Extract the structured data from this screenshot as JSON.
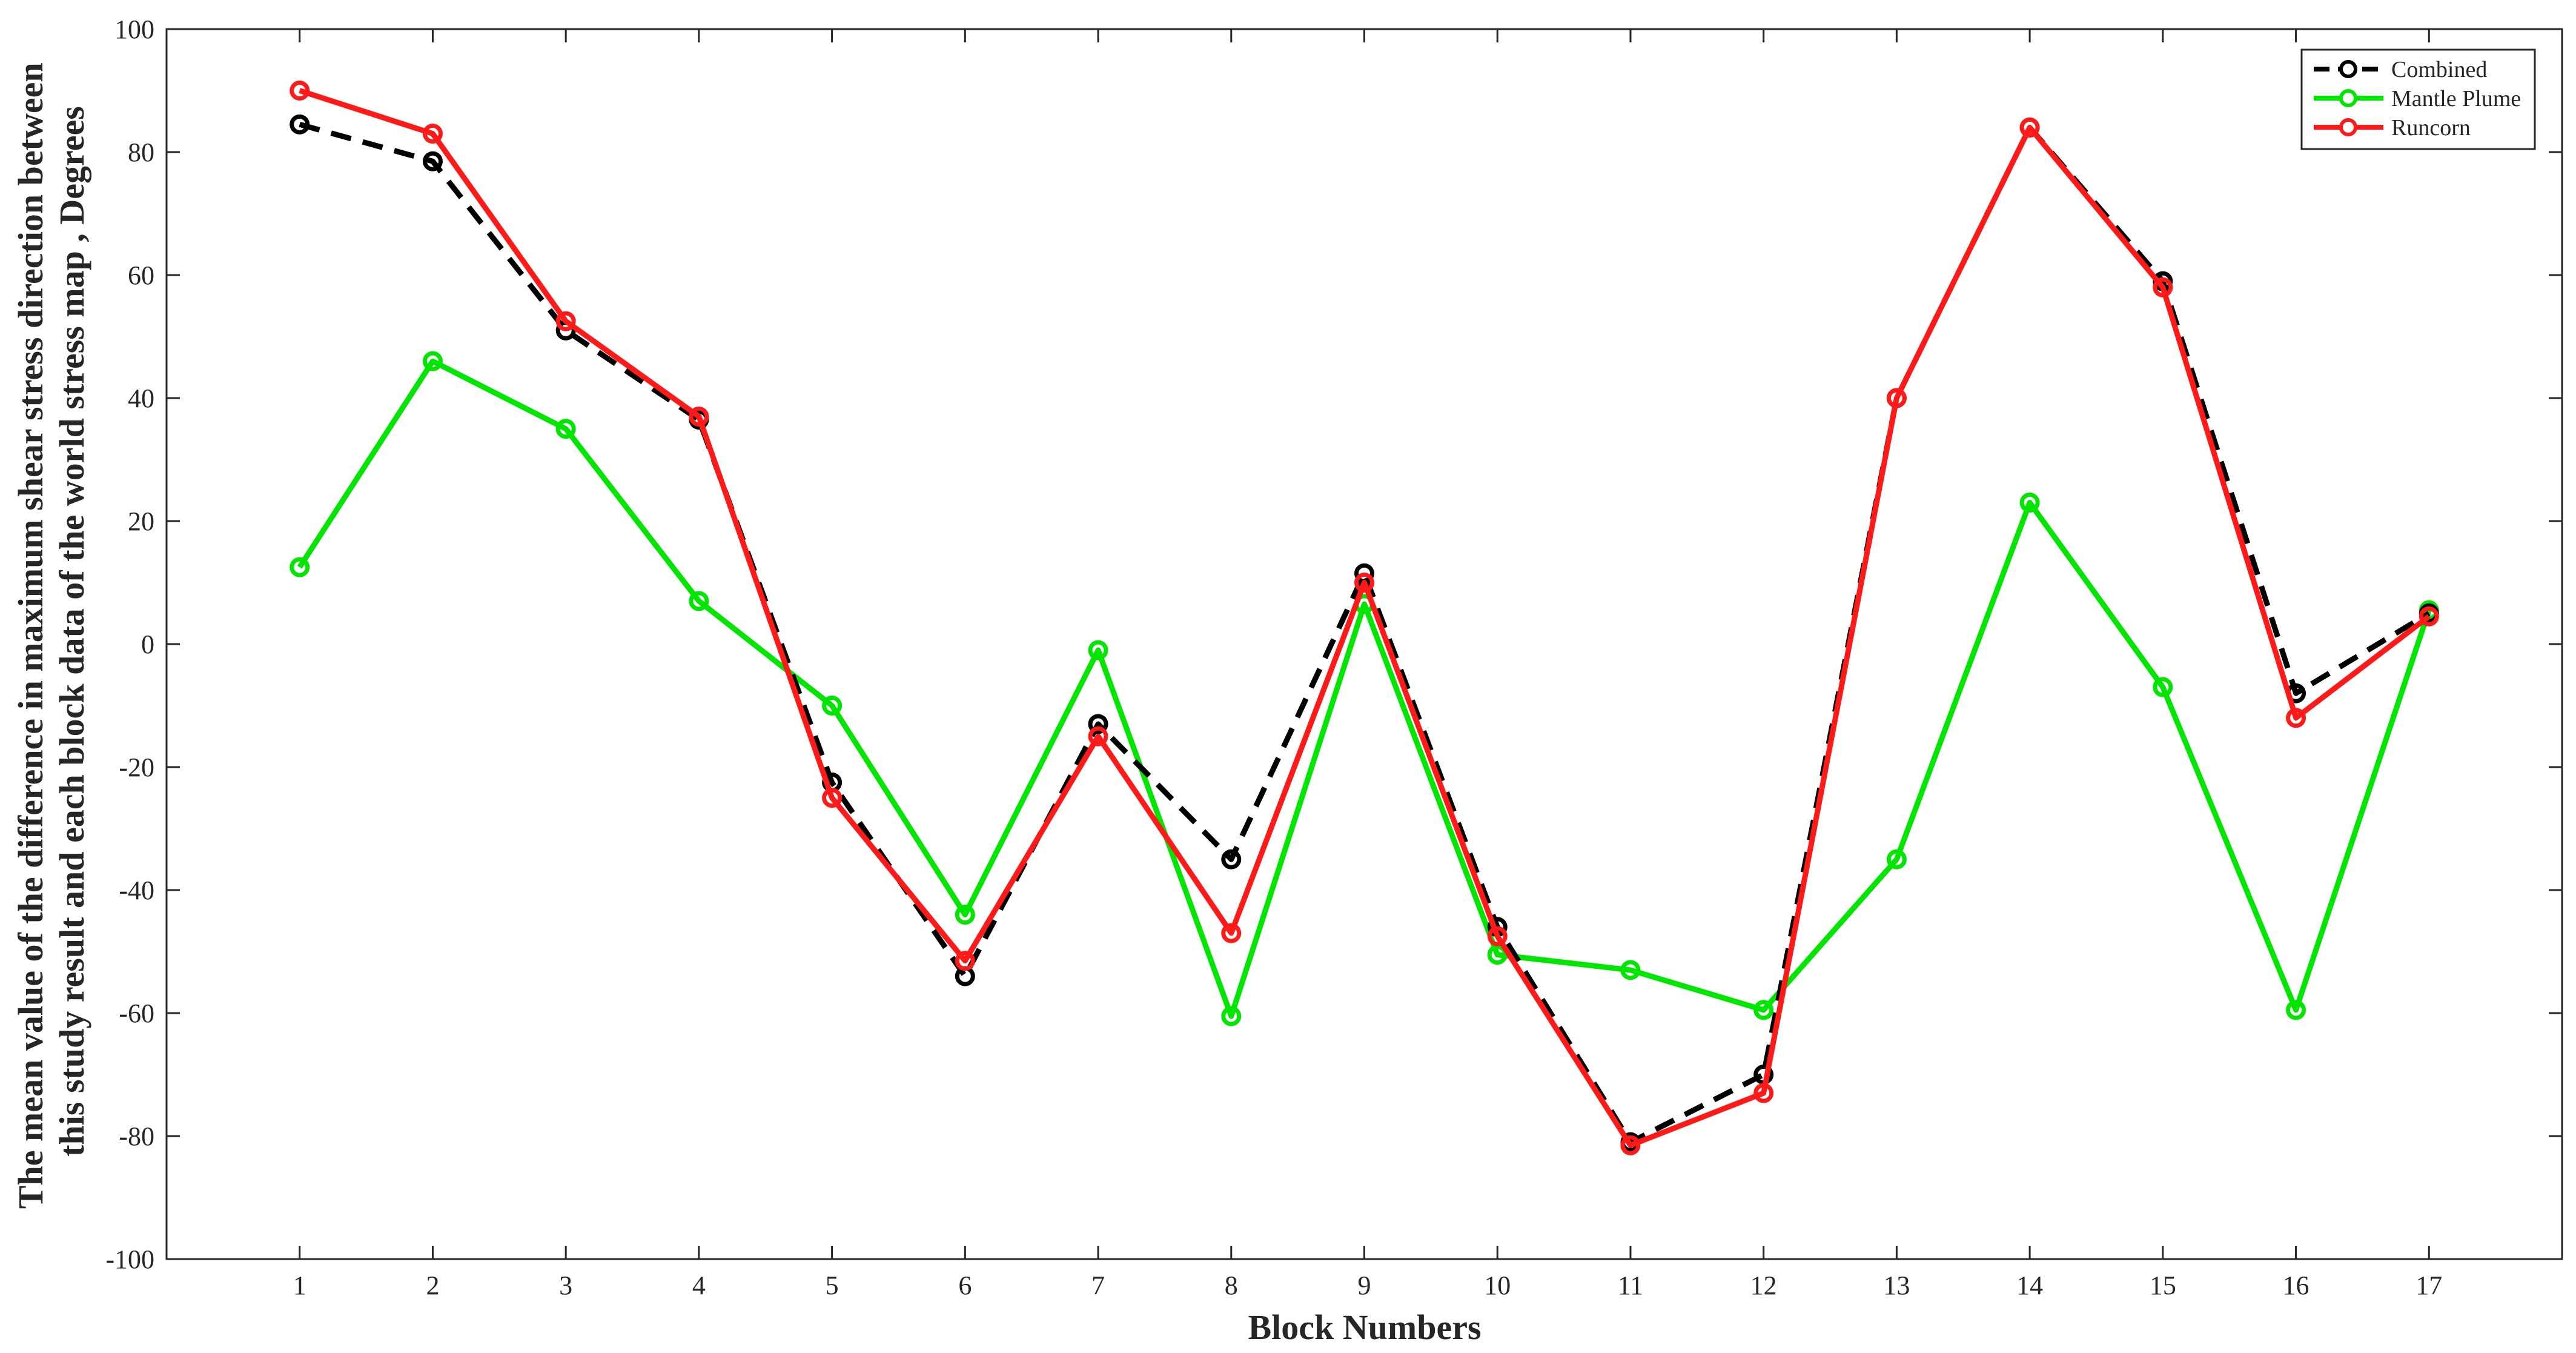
{
  "chart_data": {
    "type": "line",
    "xlabel": "Block Numbers",
    "ylabel_lines": [
      "The mean value of the difference in maximum shear stress direction between",
      "this study result and each block data of the world stress map , Degrees"
    ],
    "x_ticks": [
      1,
      2,
      3,
      4,
      5,
      6,
      7,
      8,
      9,
      10,
      11,
      12,
      13,
      14,
      15,
      16,
      17
    ],
    "xlim": [
      0,
      18
    ],
    "ylim": [
      -100,
      100
    ],
    "y_ticks": [
      -100,
      -80,
      -60,
      -40,
      -20,
      0,
      20,
      40,
      60,
      80,
      100
    ],
    "grid": false,
    "legend_position": "top-right",
    "x": [
      1,
      2,
      3,
      4,
      5,
      6,
      7,
      8,
      9,
      10,
      11,
      12,
      13,
      14,
      15,
      16,
      17
    ],
    "series": [
      {
        "name": "Combined",
        "color": "#000000",
        "dashed": true,
        "values": [
          84.5,
          78.5,
          51,
          36.5,
          -22.5,
          -54,
          -13,
          -35,
          11.5,
          -46,
          -81,
          -70,
          40,
          84,
          59,
          -8,
          5
        ]
      },
      {
        "name": "Mantle Plume",
        "color": "#00e600",
        "dashed": false,
        "values": [
          12.5,
          46,
          35,
          7,
          -10,
          -44,
          -1,
          -60.5,
          6.5,
          -50.5,
          -53,
          -59.5,
          -35,
          23,
          -7,
          -59.5,
          5.5
        ]
      },
      {
        "name": "Runcorn",
        "color": "#ff1a1a",
        "dashed": false,
        "values": [
          90,
          83,
          52.5,
          37,
          -25,
          -51.5,
          -15,
          -47,
          10,
          -47.5,
          -81.5,
          -73,
          40,
          84,
          58,
          -12,
          4.5
        ]
      }
    ]
  }
}
